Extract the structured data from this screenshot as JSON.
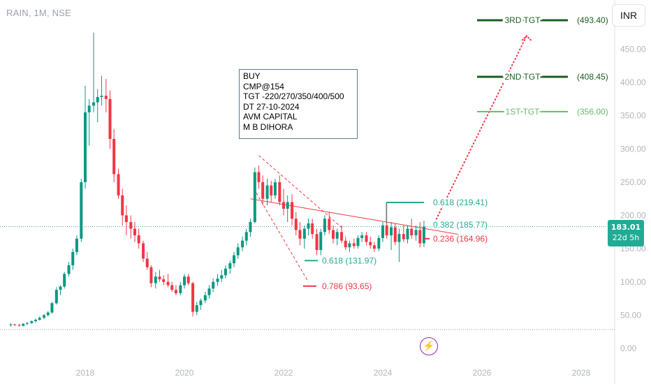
{
  "header": {
    "symbol": "RAIN, 1M, NSE"
  },
  "currency_button": "INR",
  "last_price": {
    "value": "183.01",
    "countdown": "22d 5h"
  },
  "trade_note": {
    "lines": [
      "BUY",
      "CMP@154",
      "TGT -220/270/350/400/500",
      "DT 27-10-2024",
      "AVM CAPITAL",
      "M B DIHORA"
    ]
  },
  "colors": {
    "up": "#089981",
    "down": "#f23645",
    "fib_green": "#22ab94",
    "tgt_dark": "#1b5e20",
    "tgt_light": "#66bb6a",
    "note_border": "#5d7a8c"
  },
  "icons": {
    "alert": "lightning-bolt-icon"
  },
  "chart_data": {
    "type": "candlestick",
    "y_axis": {
      "min": 0,
      "max": 500,
      "ticks": [
        "0.00",
        "50.00",
        "100.00",
        "150.00",
        "200.00",
        "250.00",
        "300.00",
        "350.00",
        "400.00",
        "450.00"
      ],
      "position": "right"
    },
    "x_axis": {
      "min": 2016.5,
      "max": 2029,
      "ticks": [
        "2018",
        "2020",
        "2022",
        "2024",
        "2026",
        "2028"
      ]
    },
    "current_price": 183.01,
    "candles": [
      {
        "t": 2016.5,
        "o": 35,
        "h": 38,
        "l": 33,
        "c": 36
      },
      {
        "t": 2016.58,
        "o": 36,
        "h": 37,
        "l": 34,
        "c": 35
      },
      {
        "t": 2016.67,
        "o": 35,
        "h": 37,
        "l": 33,
        "c": 34
      },
      {
        "t": 2016.75,
        "o": 34,
        "h": 38,
        "l": 33,
        "c": 37
      },
      {
        "t": 2016.83,
        "o": 37,
        "h": 40,
        "l": 35,
        "c": 38
      },
      {
        "t": 2016.92,
        "o": 38,
        "h": 42,
        "l": 37,
        "c": 41
      },
      {
        "t": 2017.0,
        "o": 41,
        "h": 45,
        "l": 39,
        "c": 43
      },
      {
        "t": 2017.08,
        "o": 43,
        "h": 48,
        "l": 42,
        "c": 46
      },
      {
        "t": 2017.17,
        "o": 46,
        "h": 52,
        "l": 44,
        "c": 50
      },
      {
        "t": 2017.25,
        "o": 50,
        "h": 56,
        "l": 48,
        "c": 54
      },
      {
        "t": 2017.33,
        "o": 54,
        "h": 70,
        "l": 52,
        "c": 68
      },
      {
        "t": 2017.42,
        "o": 68,
        "h": 92,
        "l": 66,
        "c": 88
      },
      {
        "t": 2017.5,
        "o": 88,
        "h": 95,
        "l": 80,
        "c": 93
      },
      {
        "t": 2017.58,
        "o": 93,
        "h": 115,
        "l": 90,
        "c": 112
      },
      {
        "t": 2017.67,
        "o": 112,
        "h": 130,
        "l": 108,
        "c": 125
      },
      {
        "t": 2017.75,
        "o": 125,
        "h": 150,
        "l": 118,
        "c": 145
      },
      {
        "t": 2017.83,
        "o": 145,
        "h": 170,
        "l": 140,
        "c": 165
      },
      {
        "t": 2017.92,
        "o": 165,
        "h": 255,
        "l": 160,
        "c": 250
      },
      {
        "t": 2018.0,
        "o": 250,
        "h": 395,
        "l": 240,
        "c": 355
      },
      {
        "t": 2018.08,
        "o": 355,
        "h": 375,
        "l": 305,
        "c": 365
      },
      {
        "t": 2018.17,
        "o": 365,
        "h": 475,
        "l": 355,
        "c": 370
      },
      {
        "t": 2018.25,
        "o": 370,
        "h": 390,
        "l": 340,
        "c": 378
      },
      {
        "t": 2018.33,
        "o": 378,
        "h": 410,
        "l": 365,
        "c": 380
      },
      {
        "t": 2018.42,
        "o": 380,
        "h": 405,
        "l": 355,
        "c": 375
      },
      {
        "t": 2018.5,
        "o": 375,
        "h": 388,
        "l": 300,
        "c": 315
      },
      {
        "t": 2018.58,
        "o": 315,
        "h": 330,
        "l": 250,
        "c": 262
      },
      {
        "t": 2018.67,
        "o": 262,
        "h": 270,
        "l": 225,
        "c": 230
      },
      {
        "t": 2018.75,
        "o": 230,
        "h": 240,
        "l": 185,
        "c": 200
      },
      {
        "t": 2018.83,
        "o": 200,
        "h": 215,
        "l": 170,
        "c": 190
      },
      {
        "t": 2018.92,
        "o": 190,
        "h": 200,
        "l": 165,
        "c": 180
      },
      {
        "t": 2019.0,
        "o": 180,
        "h": 190,
        "l": 160,
        "c": 170
      },
      {
        "t": 2019.08,
        "o": 170,
        "h": 180,
        "l": 150,
        "c": 158
      },
      {
        "t": 2019.17,
        "o": 158,
        "h": 162,
        "l": 130,
        "c": 135
      },
      {
        "t": 2019.25,
        "o": 135,
        "h": 145,
        "l": 118,
        "c": 122
      },
      {
        "t": 2019.33,
        "o": 122,
        "h": 125,
        "l": 92,
        "c": 98
      },
      {
        "t": 2019.42,
        "o": 98,
        "h": 115,
        "l": 90,
        "c": 108
      },
      {
        "t": 2019.5,
        "o": 108,
        "h": 118,
        "l": 100,
        "c": 104
      },
      {
        "t": 2019.58,
        "o": 104,
        "h": 110,
        "l": 95,
        "c": 100
      },
      {
        "t": 2019.67,
        "o": 100,
        "h": 112,
        "l": 92,
        "c": 95
      },
      {
        "t": 2019.75,
        "o": 95,
        "h": 100,
        "l": 85,
        "c": 88
      },
      {
        "t": 2019.83,
        "o": 88,
        "h": 95,
        "l": 80,
        "c": 83
      },
      {
        "t": 2019.92,
        "o": 83,
        "h": 100,
        "l": 80,
        "c": 95
      },
      {
        "t": 2020.0,
        "o": 95,
        "h": 112,
        "l": 90,
        "c": 108
      },
      {
        "t": 2020.08,
        "o": 108,
        "h": 112,
        "l": 95,
        "c": 98
      },
      {
        "t": 2020.17,
        "o": 98,
        "h": 100,
        "l": 48,
        "c": 55
      },
      {
        "t": 2020.25,
        "o": 55,
        "h": 70,
        "l": 50,
        "c": 65
      },
      {
        "t": 2020.33,
        "o": 65,
        "h": 75,
        "l": 58,
        "c": 72
      },
      {
        "t": 2020.42,
        "o": 72,
        "h": 85,
        "l": 68,
        "c": 80
      },
      {
        "t": 2020.5,
        "o": 80,
        "h": 95,
        "l": 75,
        "c": 90
      },
      {
        "t": 2020.58,
        "o": 90,
        "h": 105,
        "l": 85,
        "c": 100
      },
      {
        "t": 2020.67,
        "o": 100,
        "h": 112,
        "l": 94,
        "c": 105
      },
      {
        "t": 2020.75,
        "o": 105,
        "h": 118,
        "l": 100,
        "c": 110
      },
      {
        "t": 2020.83,
        "o": 110,
        "h": 125,
        "l": 105,
        "c": 120
      },
      {
        "t": 2020.92,
        "o": 120,
        "h": 132,
        "l": 112,
        "c": 128
      },
      {
        "t": 2021.0,
        "o": 128,
        "h": 145,
        "l": 122,
        "c": 140
      },
      {
        "t": 2021.08,
        "o": 140,
        "h": 158,
        "l": 135,
        "c": 152
      },
      {
        "t": 2021.17,
        "o": 152,
        "h": 168,
        "l": 146,
        "c": 162
      },
      {
        "t": 2021.25,
        "o": 162,
        "h": 180,
        "l": 155,
        "c": 175
      },
      {
        "t": 2021.33,
        "o": 175,
        "h": 195,
        "l": 168,
        "c": 190
      },
      {
        "t": 2021.42,
        "o": 190,
        "h": 272,
        "l": 188,
        "c": 265
      },
      {
        "t": 2021.5,
        "o": 265,
        "h": 275,
        "l": 240,
        "c": 250
      },
      {
        "t": 2021.58,
        "o": 250,
        "h": 260,
        "l": 215,
        "c": 225
      },
      {
        "t": 2021.67,
        "o": 225,
        "h": 255,
        "l": 215,
        "c": 245
      },
      {
        "t": 2021.75,
        "o": 245,
        "h": 252,
        "l": 220,
        "c": 230
      },
      {
        "t": 2021.83,
        "o": 230,
        "h": 255,
        "l": 225,
        "c": 250
      },
      {
        "t": 2021.92,
        "o": 250,
        "h": 260,
        "l": 215,
        "c": 220
      },
      {
        "t": 2022.0,
        "o": 220,
        "h": 240,
        "l": 200,
        "c": 210
      },
      {
        "t": 2022.08,
        "o": 210,
        "h": 230,
        "l": 190,
        "c": 220
      },
      {
        "t": 2022.17,
        "o": 220,
        "h": 232,
        "l": 185,
        "c": 195
      },
      {
        "t": 2022.25,
        "o": 195,
        "h": 205,
        "l": 170,
        "c": 178
      },
      {
        "t": 2022.33,
        "o": 178,
        "h": 190,
        "l": 155,
        "c": 165
      },
      {
        "t": 2022.42,
        "o": 165,
        "h": 185,
        "l": 150,
        "c": 180
      },
      {
        "t": 2022.5,
        "o": 180,
        "h": 195,
        "l": 170,
        "c": 188
      },
      {
        "t": 2022.58,
        "o": 188,
        "h": 195,
        "l": 165,
        "c": 172
      },
      {
        "t": 2022.67,
        "o": 172,
        "h": 180,
        "l": 140,
        "c": 148
      },
      {
        "t": 2022.75,
        "o": 148,
        "h": 180,
        "l": 140,
        "c": 175
      },
      {
        "t": 2022.83,
        "o": 175,
        "h": 200,
        "l": 170,
        "c": 195
      },
      {
        "t": 2022.92,
        "o": 195,
        "h": 205,
        "l": 172,
        "c": 178
      },
      {
        "t": 2023.0,
        "o": 178,
        "h": 185,
        "l": 158,
        "c": 165
      },
      {
        "t": 2023.08,
        "o": 165,
        "h": 180,
        "l": 155,
        "c": 175
      },
      {
        "t": 2023.17,
        "o": 175,
        "h": 185,
        "l": 158,
        "c": 162
      },
      {
        "t": 2023.25,
        "o": 162,
        "h": 168,
        "l": 148,
        "c": 152
      },
      {
        "t": 2023.33,
        "o": 152,
        "h": 162,
        "l": 145,
        "c": 158
      },
      {
        "t": 2023.42,
        "o": 158,
        "h": 165,
        "l": 150,
        "c": 154
      },
      {
        "t": 2023.5,
        "o": 154,
        "h": 170,
        "l": 150,
        "c": 166
      },
      {
        "t": 2023.58,
        "o": 166,
        "h": 175,
        "l": 160,
        "c": 170
      },
      {
        "t": 2023.67,
        "o": 170,
        "h": 175,
        "l": 155,
        "c": 160
      },
      {
        "t": 2023.75,
        "o": 160,
        "h": 168,
        "l": 150,
        "c": 155
      },
      {
        "t": 2023.83,
        "o": 155,
        "h": 160,
        "l": 145,
        "c": 150
      },
      {
        "t": 2023.92,
        "o": 150,
        "h": 170,
        "l": 146,
        "c": 166
      },
      {
        "t": 2024.0,
        "o": 166,
        "h": 190,
        "l": 160,
        "c": 185
      },
      {
        "t": 2024.08,
        "o": 185,
        "h": 219,
        "l": 165,
        "c": 170
      },
      {
        "t": 2024.17,
        "o": 170,
        "h": 190,
        "l": 148,
        "c": 182
      },
      {
        "t": 2024.25,
        "o": 182,
        "h": 188,
        "l": 155,
        "c": 160
      },
      {
        "t": 2024.33,
        "o": 160,
        "h": 180,
        "l": 130,
        "c": 172
      },
      {
        "t": 2024.42,
        "o": 172,
        "h": 186,
        "l": 160,
        "c": 164
      },
      {
        "t": 2024.5,
        "o": 164,
        "h": 185,
        "l": 158,
        "c": 180
      },
      {
        "t": 2024.58,
        "o": 180,
        "h": 195,
        "l": 165,
        "c": 170
      },
      {
        "t": 2024.67,
        "o": 170,
        "h": 185,
        "l": 162,
        "c": 178
      },
      {
        "t": 2024.75,
        "o": 178,
        "h": 190,
        "l": 152,
        "c": 158
      },
      {
        "t": 2024.83,
        "o": 158,
        "h": 192,
        "l": 152,
        "c": 183
      }
    ],
    "targets": [
      {
        "label": "3RD TGT",
        "value_label": "(493.40)",
        "price": 493.4,
        "style": "dark"
      },
      {
        "label": "2ND TGT",
        "value_label": "(408.45)",
        "price": 408.45,
        "style": "dark"
      },
      {
        "label": "1ST TGT",
        "value_label": "(356.00)",
        "price": 356.0,
        "style": "light"
      }
    ],
    "fib_levels": [
      {
        "label": "0.618 (219.41)",
        "price": 219.41,
        "color": "green"
      },
      {
        "label": "0.382 (185.77)",
        "price": 185.77,
        "color": "green"
      },
      {
        "label": "0.236 (164.96)",
        "price": 164.96,
        "color": "red"
      },
      {
        "label": "0.618 (131.97)",
        "price": 131.97,
        "color": "green"
      },
      {
        "label": "0.786 (93.65)",
        "price": 93.65,
        "color": "red"
      }
    ],
    "trendlines": [
      {
        "style": "solid",
        "from": [
          2021.33,
          225
        ],
        "to": [
          2025.8,
          168
        ]
      },
      {
        "style": "dashed",
        "from": [
          2021.5,
          290
        ],
        "to": [
          2023.2,
          180
        ]
      },
      {
        "style": "dashed",
        "from": [
          2021.4,
          240
        ],
        "to": [
          2022.5,
          100
        ]
      }
    ],
    "projection": {
      "from": [
        2025.05,
        190
      ],
      "to": [
        2026.9,
        470
      ],
      "style": "dotted"
    }
  }
}
